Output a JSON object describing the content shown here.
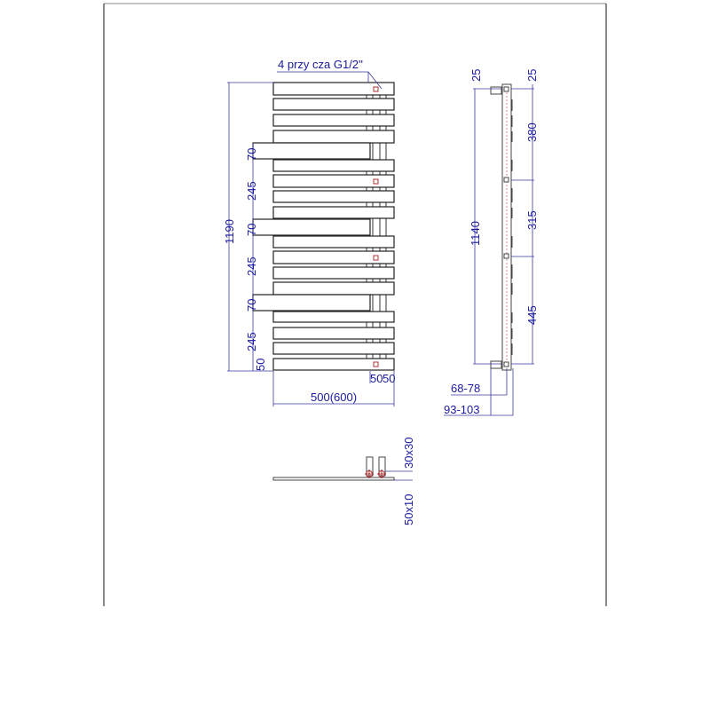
{
  "front_view": {
    "connection_label": "4 przy   cza G1/2''",
    "height_total": "1190",
    "segments": [
      "70",
      "245",
      "70",
      "245",
      "70",
      "245",
      "50"
    ],
    "bottom_offsets": [
      "50",
      "50"
    ],
    "width": "500(600)"
  },
  "side_view": {
    "top_left": "25",
    "top_right": "25",
    "height": "1140",
    "spacings": [
      "380",
      "315",
      "445"
    ],
    "depth_inner": "68-78",
    "depth_outer": "93-103"
  },
  "top_view": {
    "bracket": "30x30",
    "bar": "50x10"
  },
  "colors": {
    "dimension": "#1a1aa0",
    "valve": "#b03030"
  }
}
